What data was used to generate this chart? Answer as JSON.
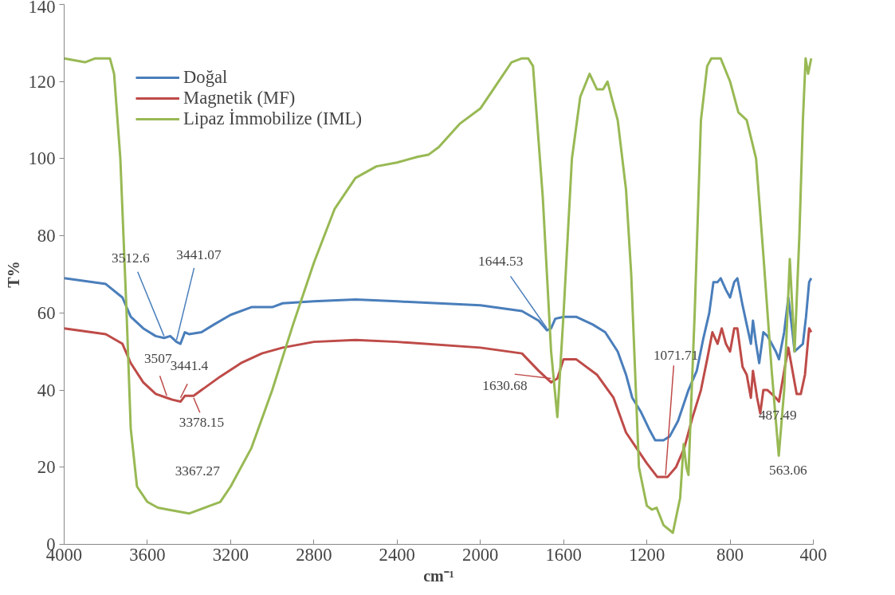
{
  "chart_data": {
    "type": "line",
    "xlabel": "cm⁻¹",
    "ylabel": "T%",
    "xlim": [
      4000,
      400
    ],
    "ylim": [
      0,
      140
    ],
    "xticks": [
      4000,
      3600,
      3200,
      2800,
      2400,
      2000,
      1600,
      1200,
      800,
      400
    ],
    "yticks": [
      0,
      20,
      40,
      60,
      80,
      100,
      120,
      140
    ],
    "grid": false,
    "legend": "top left",
    "line_style": "solid",
    "marker": "none",
    "series": [
      {
        "name": "Doğal",
        "color": "#4a7ebb",
        "x": [
          4000,
          3800,
          3720,
          3680,
          3620,
          3560,
          3520,
          3490,
          3460,
          3441,
          3420,
          3400,
          3340,
          3280,
          3200,
          3100,
          3000,
          2950,
          2800,
          2600,
          2400,
          2000,
          1800,
          1720,
          1680,
          1660,
          1640,
          1600,
          1540,
          1460,
          1400,
          1340,
          1300,
          1270,
          1230,
          1190,
          1160,
          1120,
          1090,
          1050,
          1000,
          960,
          930,
          900,
          880,
          860,
          845,
          820,
          800,
          780,
          765,
          740,
          720,
          700,
          690,
          675,
          660,
          640,
          620,
          600,
          580,
          565,
          540,
          520,
          500,
          490,
          470,
          450,
          435,
          420,
          410
        ],
        "values": [
          69,
          67.5,
          64,
          59,
          56,
          54,
          53.5,
          54,
          52.5,
          52,
          55,
          54.5,
          55,
          57,
          59.5,
          61.5,
          61.5,
          62.5,
          63,
          63.5,
          63,
          62,
          60.5,
          58,
          55.5,
          56,
          58.5,
          59,
          59,
          57,
          55,
          50,
          44,
          38,
          34.5,
          30,
          27,
          27,
          28,
          32,
          40,
          45,
          53,
          60,
          68,
          68,
          69,
          66,
          64,
          68,
          69,
          62,
          57,
          52,
          58,
          52,
          47,
          55,
          54,
          52,
          50,
          48,
          55,
          64,
          55,
          50,
          51,
          52,
          59,
          68,
          69
        ]
      },
      {
        "name": "Magnetik (MF)",
        "color": "#be4b48",
        "x": [
          4000,
          3800,
          3720,
          3680,
          3620,
          3560,
          3507,
          3480,
          3441,
          3420,
          3378,
          3340,
          3250,
          3150,
          3050,
          2950,
          2800,
          2600,
          2400,
          2000,
          1800,
          1720,
          1660,
          1630,
          1600,
          1540,
          1440,
          1360,
          1300,
          1250,
          1200,
          1150,
          1100,
          1060,
          1020,
          980,
          940,
          910,
          885,
          860,
          840,
          820,
          800,
          780,
          765,
          740,
          720,
          700,
          690,
          670,
          655,
          640,
          620,
          600,
          580,
          565,
          540,
          520,
          500,
          480,
          460,
          440,
          420,
          410
        ],
        "values": [
          56,
          54.5,
          52,
          47,
          42,
          39,
          38,
          37.5,
          37,
          38.5,
          38.5,
          40,
          43.5,
          47,
          49.5,
          51,
          52.5,
          53,
          52.5,
          51,
          49.5,
          45,
          42,
          43,
          48,
          48,
          44,
          38,
          29,
          25,
          21,
          17.5,
          17.5,
          20,
          25,
          33,
          40,
          48,
          55,
          52,
          56,
          52,
          50,
          56,
          56,
          46,
          44,
          38,
          45,
          38,
          34,
          40,
          40,
          39,
          38,
          37,
          45,
          51,
          45,
          39,
          39,
          44,
          56,
          55
        ]
      },
      {
        "name": "Lipaz İmmobilize (IML)",
        "color": "#98b954",
        "x": [
          4000,
          3900,
          3850,
          3780,
          3760,
          3730,
          3700,
          3680,
          3650,
          3600,
          3550,
          3500,
          3400,
          3300,
          3250,
          3200,
          3100,
          3000,
          2900,
          2800,
          2700,
          2600,
          2500,
          2400,
          2300,
          2250,
          2200,
          2100,
          2000,
          1900,
          1850,
          1800,
          1770,
          1747,
          1700,
          1660,
          1630,
          1600,
          1560,
          1520,
          1475,
          1440,
          1410,
          1389,
          1370,
          1340,
          1300,
          1275,
          1238,
          1200,
          1175,
          1153,
          1120,
          1075,
          1040,
          1023,
          1010,
          1000,
          970,
          940,
          910,
          890,
          845,
          800,
          760,
          720,
          675,
          640,
          600,
          566,
          540,
          513,
          490,
          467,
          450,
          437,
          425,
          410
        ],
        "values": [
          126,
          125,
          126,
          126,
          122,
          100,
          60,
          30,
          15,
          11,
          9.5,
          9,
          8,
          10,
          11,
          15,
          25,
          40,
          57,
          73,
          87,
          95,
          98,
          99,
          100.5,
          101,
          103,
          109,
          113,
          121,
          125,
          126,
          126,
          124,
          90,
          50,
          33,
          60,
          100,
          116,
          122,
          118,
          118,
          120,
          116,
          110,
          92,
          70,
          20,
          10,
          9,
          9.5,
          5,
          3,
          12,
          26,
          20,
          18,
          60,
          110,
          124,
          126,
          126,
          120,
          112,
          110,
          100,
          75,
          45,
          23,
          40,
          74,
          50,
          80,
          110,
          126,
          122,
          126
        ]
      }
    ],
    "annotations": [
      {
        "text": "3512.6",
        "x": 3520,
        "y": 54
      },
      {
        "text": "3441.07",
        "x": 3460,
        "y": 53
      },
      {
        "text": "3507",
        "x": 3507,
        "y": 38.5
      },
      {
        "text": "3441.4",
        "x": 3441,
        "y": 38
      },
      {
        "text": "3378.15",
        "x": 3378,
        "y": 38
      },
      {
        "text": "3367.27",
        "x": 3367,
        "y": 8
      },
      {
        "text": "1644.53",
        "x": 1680,
        "y": 56
      },
      {
        "text": "1630.68",
        "x": 1660,
        "y": 43
      },
      {
        "text": "1071.71",
        "x": 1110,
        "y": 18
      },
      {
        "text": "563.06",
        "x": 563,
        "y": 23
      },
      {
        "text": "487.49",
        "x": 487,
        "y": 39
      }
    ]
  }
}
